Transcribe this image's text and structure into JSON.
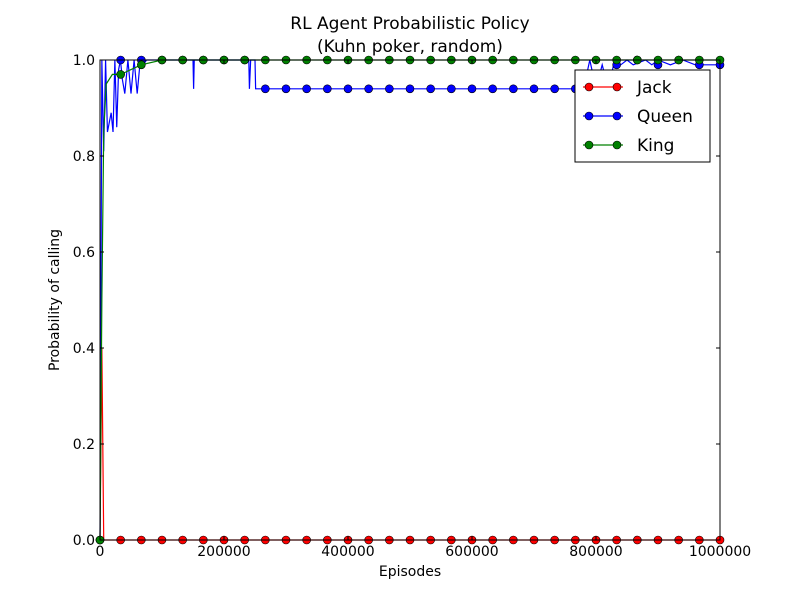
{
  "chart_data": {
    "type": "line",
    "title": "RL Agent Probabilistic Policy",
    "subtitle": "(Kuhn poker, random)",
    "xlabel": "Episodes",
    "ylabel": "Probability of calling",
    "xlim": [
      0,
      1000000
    ],
    "ylim": [
      0,
      1
    ],
    "x_ticks": [
      0,
      200000,
      400000,
      600000,
      800000,
      1000000
    ],
    "x_tick_labels": [
      "0",
      "200000",
      "400000",
      "600000",
      "800000",
      "1000000"
    ],
    "y_ticks": [
      0,
      0.2,
      0.4,
      0.6,
      0.8,
      1.0
    ],
    "y_tick_labels": [
      "0.0",
      "0.2",
      "0.4",
      "0.6",
      "0.8",
      "1.0"
    ],
    "grid": false,
    "legend_position": "top-right",
    "marker_x": [
      0,
      33333,
      66667,
      100000,
      133333,
      166667,
      200000,
      233333,
      266667,
      300000,
      333333,
      366667,
      400000,
      433333,
      466667,
      500000,
      533333,
      566667,
      600000,
      633333,
      666667,
      700000,
      733333,
      766667,
      800000,
      833333,
      866667,
      900000,
      933333,
      966667,
      1000000
    ],
    "series": [
      {
        "name": "Jack",
        "color": "#ff0000",
        "marker": "circle",
        "line_x": [
          0,
          3000,
          6000,
          1000000
        ],
        "line_y": [
          0.0,
          0.4,
          0.0,
          0.0
        ],
        "marker_y": [
          0.0,
          0.0,
          0.0,
          0.0,
          0.0,
          0.0,
          0.0,
          0.0,
          0.0,
          0.0,
          0.0,
          0.0,
          0.0,
          0.0,
          0.0,
          0.0,
          0.0,
          0.0,
          0.0,
          0.0,
          0.0,
          0.0,
          0.0,
          0.0,
          0.0,
          0.0,
          0.0,
          0.0,
          0.0,
          0.0,
          0.0
        ]
      },
      {
        "name": "Queen",
        "color": "#0000ff",
        "marker": "circle",
        "line_x": [
          0,
          3000,
          6000,
          9000,
          12000,
          15000,
          18000,
          21000,
          24000,
          27000,
          30000,
          33000,
          36000,
          40000,
          45000,
          50000,
          55000,
          60000,
          65000,
          70000,
          75000,
          100000,
          150000,
          151000,
          152000,
          240000,
          241000,
          243000,
          250000,
          251000,
          260000,
          261000,
          780000,
          790000,
          800000,
          810000,
          820000,
          830000,
          840000,
          850000,
          860000,
          880000,
          890000,
          900000,
          920000,
          940000,
          960000,
          980000,
          1000000
        ],
        "line_y": [
          0.0,
          1.0,
          0.81,
          1.0,
          0.85,
          0.87,
          0.89,
          0.85,
          1.0,
          0.86,
          0.98,
          1.0,
          0.96,
          0.93,
          1.0,
          0.93,
          1.0,
          0.93,
          1.0,
          0.99,
          1.0,
          1.0,
          1.0,
          0.94,
          1.0,
          1.0,
          0.94,
          1.0,
          1.0,
          0.94,
          0.94,
          0.94,
          0.94,
          1.0,
          0.94,
          0.99,
          0.94,
          1.0,
          0.99,
          1.0,
          0.99,
          1.0,
          0.99,
          1.0,
          0.99,
          1.0,
          0.99,
          0.99,
          0.99
        ],
        "marker_y": [
          0.0,
          1.0,
          1.0,
          1.0,
          1.0,
          1.0,
          1.0,
          1.0,
          0.94,
          0.94,
          0.94,
          0.94,
          0.94,
          0.94,
          0.94,
          0.94,
          0.94,
          0.94,
          0.94,
          0.94,
          0.94,
          0.94,
          0.94,
          0.94,
          0.94,
          0.99,
          1.0,
          0.99,
          1.0,
          0.99,
          0.99
        ]
      },
      {
        "name": "King",
        "color": "#008000",
        "marker": "circle",
        "line_x": [
          0,
          3000,
          6000,
          10000,
          20000,
          33333,
          50000,
          66667,
          100000,
          133333,
          1000000
        ],
        "line_y": [
          0.0,
          0.5,
          0.85,
          0.95,
          0.97,
          0.97,
          0.98,
          0.99,
          1.0,
          1.0,
          1.0
        ],
        "marker_y": [
          0.0,
          0.97,
          0.99,
          1.0,
          1.0,
          1.0,
          1.0,
          1.0,
          1.0,
          1.0,
          1.0,
          1.0,
          1.0,
          1.0,
          1.0,
          1.0,
          1.0,
          1.0,
          1.0,
          1.0,
          1.0,
          1.0,
          1.0,
          1.0,
          1.0,
          1.0,
          1.0,
          1.0,
          1.0,
          1.0,
          1.0
        ]
      }
    ]
  }
}
